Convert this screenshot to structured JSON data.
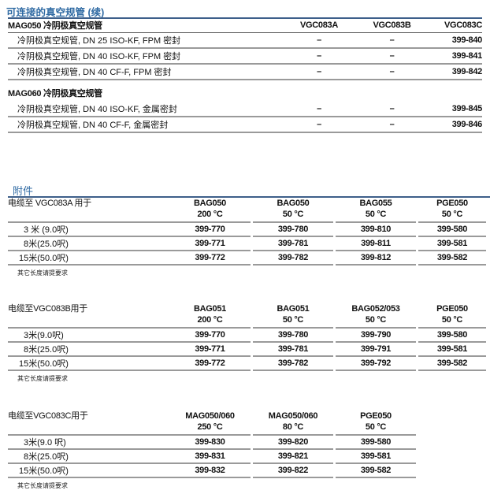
{
  "gauges": {
    "title": "可连接的真空规管 (续)",
    "columns": [
      "VGC083A",
      "VGC083B",
      "VGC083C"
    ],
    "groups": [
      {
        "name": "MAG050 冷阴极真空规管",
        "rows": [
          {
            "label": "冷阴极真空规管, DN 25 ISO-KF, FPM 密封",
            "values": [
              "–",
              "–",
              "399-840"
            ]
          },
          {
            "label": "冷阴极真空规管, DN 40 ISO-KF, FPM 密封",
            "values": [
              "–",
              "–",
              "399-841"
            ]
          },
          {
            "label": "冷阴极真空规管, DN 40 CF-F, FPM 密封",
            "values": [
              "–",
              "–",
              "399-842"
            ]
          }
        ]
      },
      {
        "name": "MAG060 冷阴极真空规管",
        "rows": [
          {
            "label": "冷阴极真空规管, DN 40 ISO-KF, 金属密封",
            "values": [
              "–",
              "–",
              "399-845"
            ]
          },
          {
            "label": "冷阴极真空规管, DN 40 CF-F, 金属密封",
            "values": [
              "–",
              "–",
              "399-846"
            ]
          }
        ]
      }
    ]
  },
  "accessories": {
    "title": "附件",
    "tables": [
      {
        "label": "电缆至 VGC083A 用于",
        "columns": [
          {
            "name": "BAG050",
            "temp": "200 °C"
          },
          {
            "name": "BAG050",
            "temp": "50 °C"
          },
          {
            "name": "BAG055",
            "temp": "50 °C"
          },
          {
            "name": "PGE050",
            "temp": "50 °C"
          }
        ],
        "rows": [
          {
            "label": "3 米 (9.0呎)",
            "values": [
              "399-770",
              "399-780",
              "399-810",
              "399-580"
            ]
          },
          {
            "label": "8米(25.0呎)",
            "values": [
              "399-771",
              "399-781",
              "399-811",
              "399-581"
            ]
          },
          {
            "label": "15米(50.0呎)",
            "values": [
              "399-772",
              "399-782",
              "399-812",
              "399-582"
            ]
          }
        ],
        "note": "其它长度请提要求"
      },
      {
        "label": "电缆至VGC083B用于",
        "columns": [
          {
            "name": "BAG051",
            "temp": "200 °C"
          },
          {
            "name": "BAG051",
            "temp": "50 °C"
          },
          {
            "name": "BAG052/053",
            "temp": "50 °C"
          },
          {
            "name": "PGE050",
            "temp": "50 °C"
          }
        ],
        "rows": [
          {
            "label": "3米(9.0呎)",
            "values": [
              "399-770",
              "399-780",
              "399-790",
              "399-580"
            ]
          },
          {
            "label": "8米(25.0呎)",
            "values": [
              "399-771",
              "399-781",
              "399-791",
              "399-581"
            ]
          },
          {
            "label": "15米(50.0呎)",
            "values": [
              "399-772",
              "399-782",
              "399-792",
              "399-582"
            ]
          }
        ],
        "note": "其它长度请提要求"
      },
      {
        "label": "电缆至VGC083C用于",
        "columns": [
          {
            "name": "MAG050/060",
            "temp": "250 °C"
          },
          {
            "name": "MAG050/060",
            "temp": "80 °C"
          },
          {
            "name": "PGE050",
            "temp": "50 °C"
          }
        ],
        "rows": [
          {
            "label": "3米(9.0 呎)",
            "values": [
              "399-830",
              "399-820",
              "399-580"
            ]
          },
          {
            "label": "8米(25.0呎)",
            "values": [
              "399-831",
              "399-821",
              "399-581"
            ]
          },
          {
            "label": "15米(50.0呎)",
            "values": [
              "399-832",
              "399-822",
              "399-582"
            ]
          }
        ],
        "note": "其它长度请提要求"
      }
    ]
  }
}
